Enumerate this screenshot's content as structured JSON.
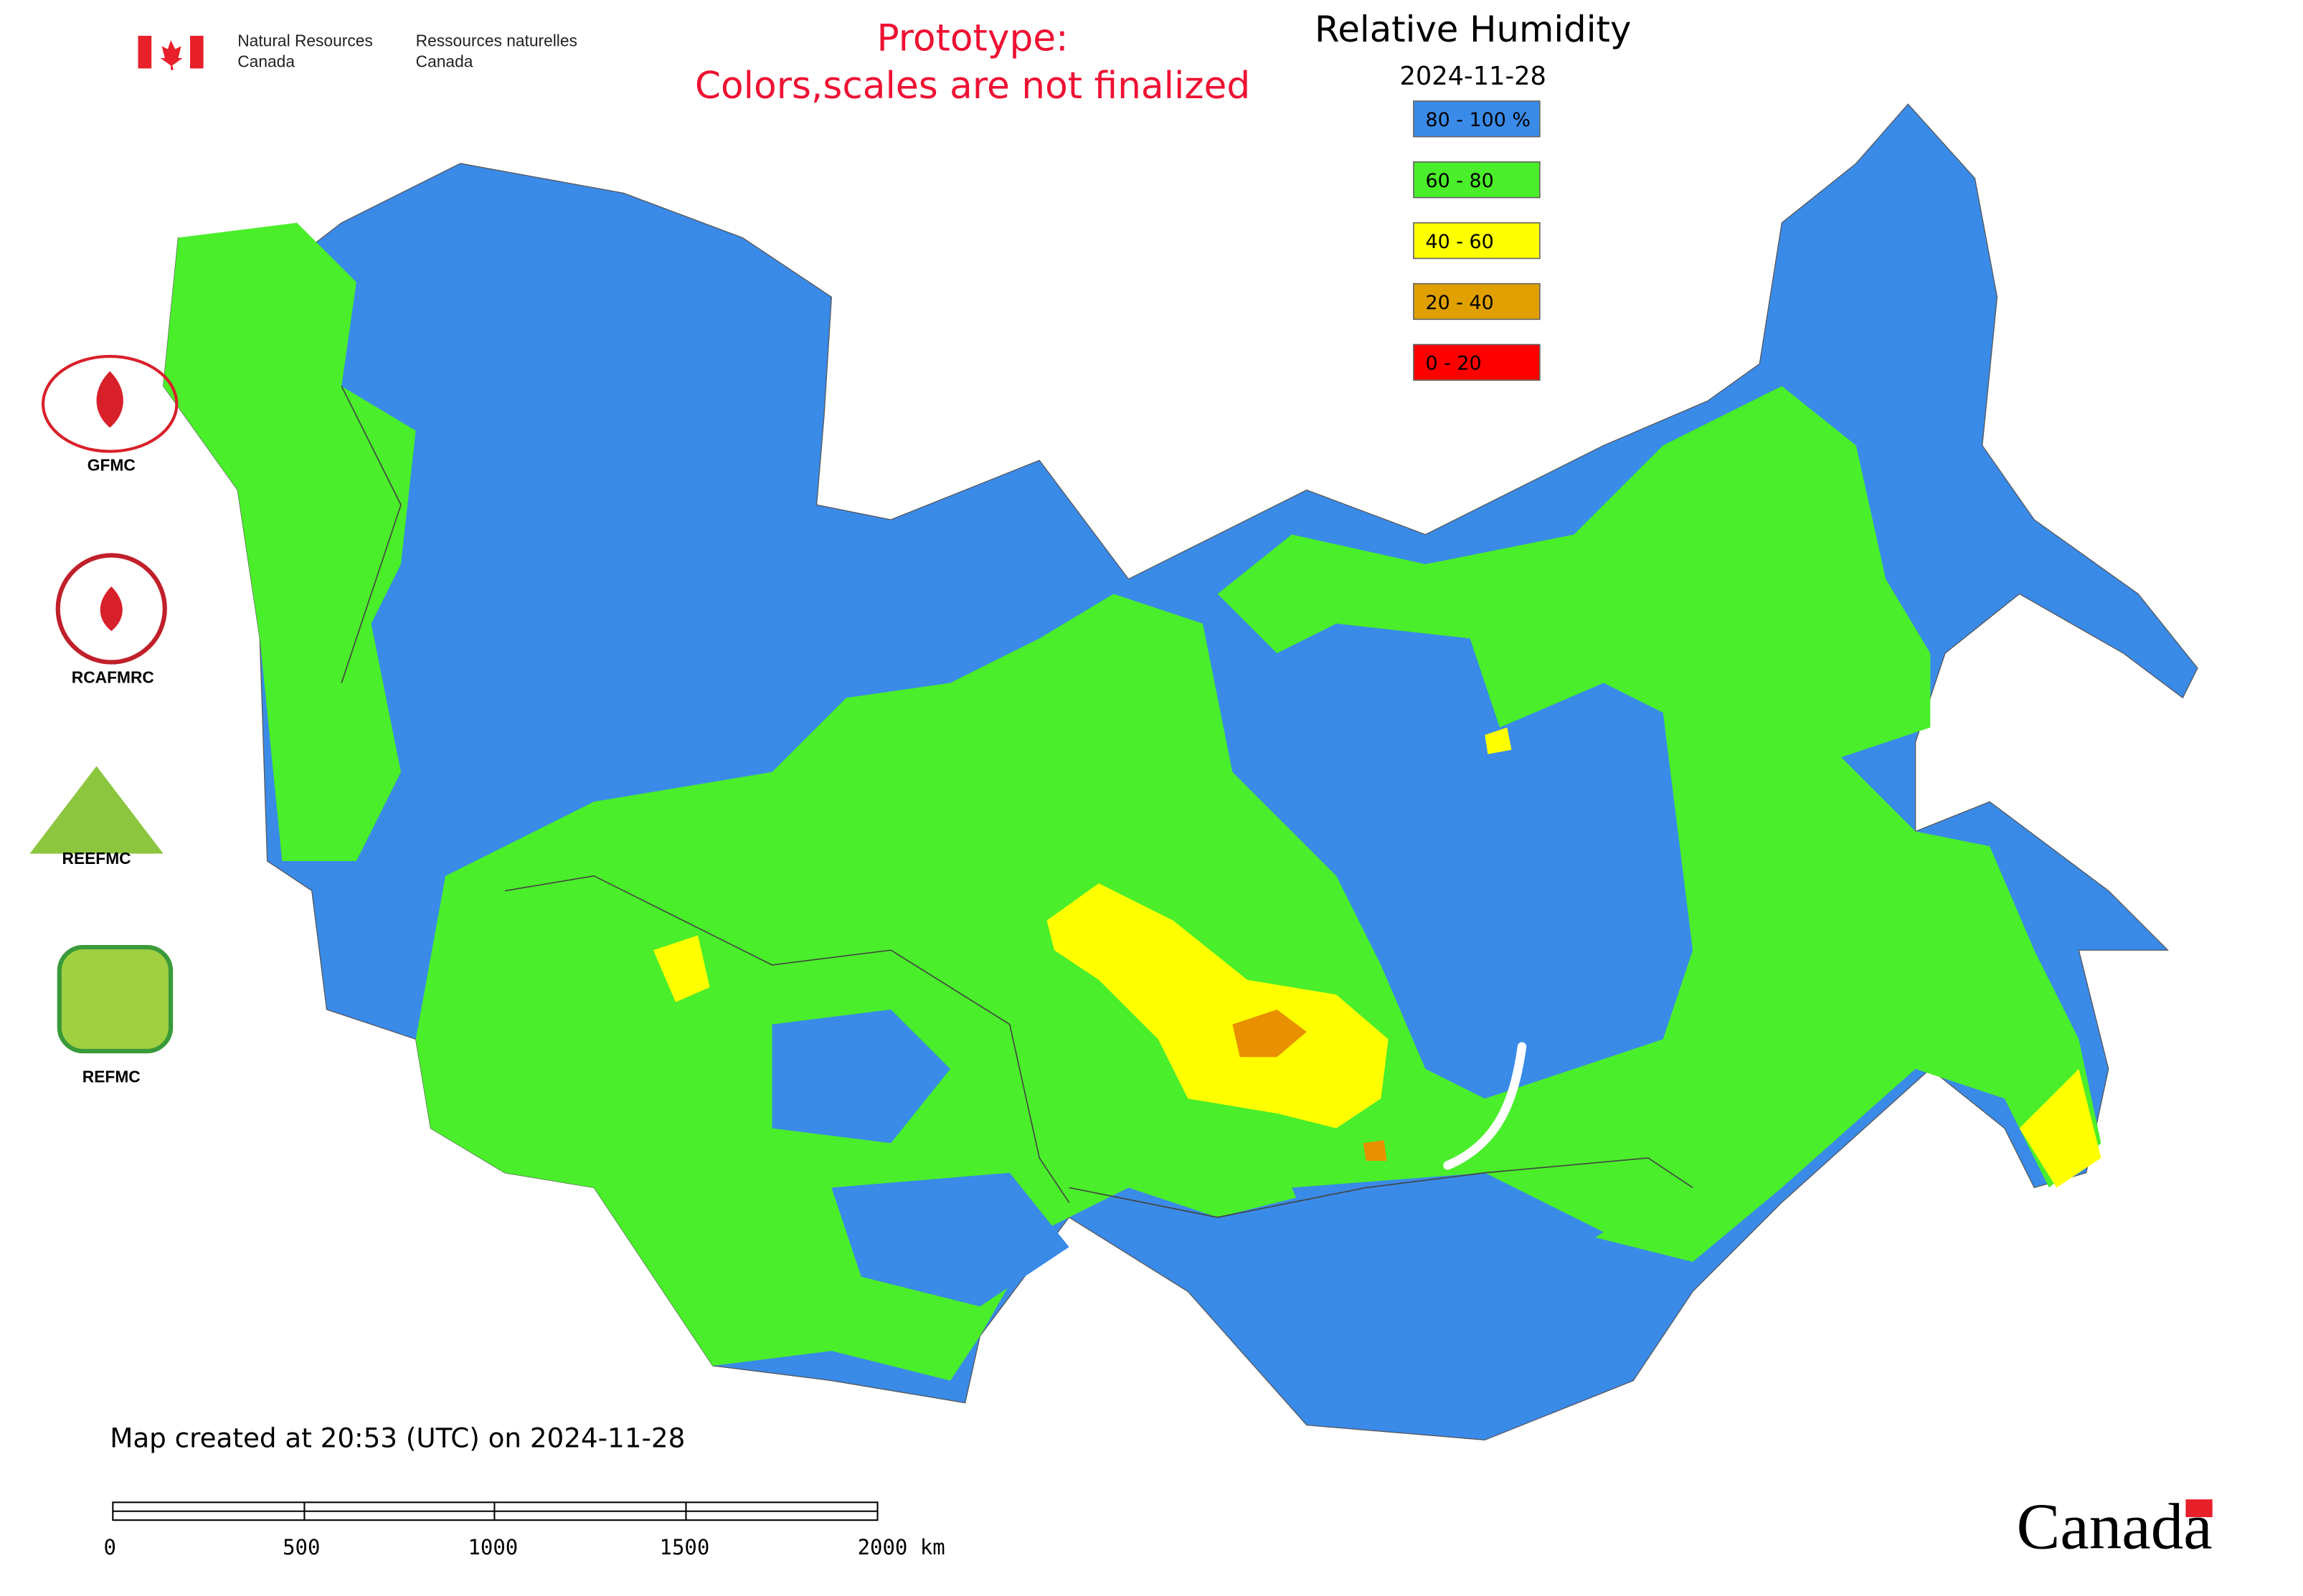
{
  "header": {
    "agency_en": [
      "Natural Resources",
      "Canada"
    ],
    "agency_fr": [
      "Ressources naturelles",
      "Canada"
    ],
    "notice": [
      "Prototype:",
      "Colors,scales are not finalized"
    ]
  },
  "map": {
    "title": "Relative Humidity",
    "date": "2024-11-28",
    "legend": [
      {
        "label": "80 - 100 %",
        "color": "#3a8ae8"
      },
      {
        "label": "60 - 80",
        "color": "#4aee2a"
      },
      {
        "label": "40 - 60",
        "color": "#ffff00"
      },
      {
        "label": "20 - 40",
        "color": "#e0a000"
      },
      {
        "label": "0 - 20",
        "color": "#ff0000"
      }
    ]
  },
  "logos": [
    "GFMC",
    "RCAFMRC",
    "REEFMC",
    "REFMC"
  ],
  "footer": {
    "created": "Map created at 20:53 (UTC) on 2024-11-28",
    "scale": [
      "0",
      "500",
      "1000",
      "1500",
      "2000 km"
    ],
    "wordmark": "Canada"
  }
}
